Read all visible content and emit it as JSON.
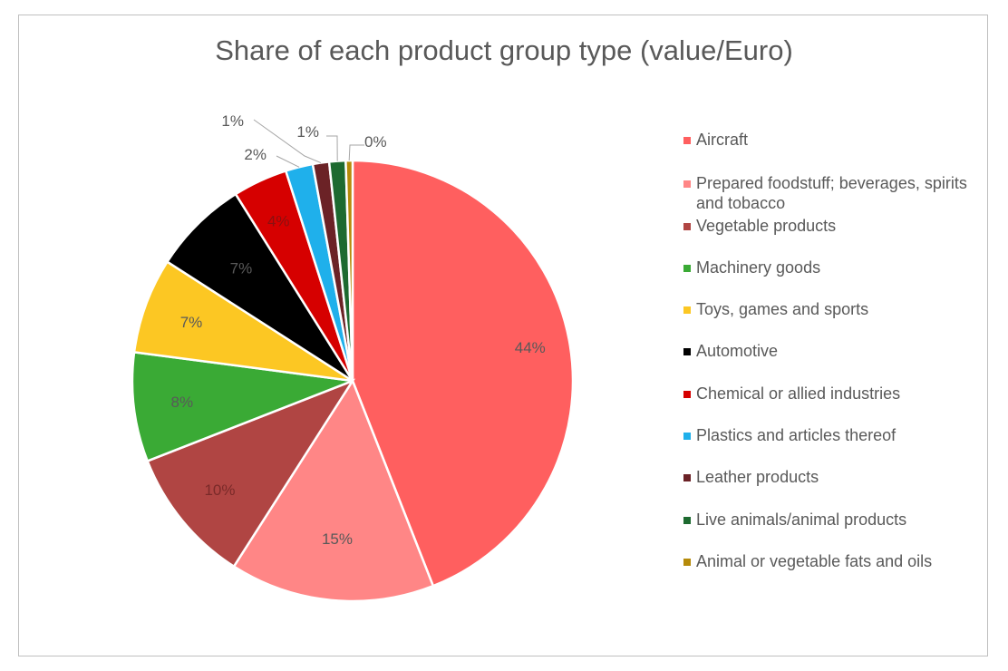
{
  "chart_data": {
    "type": "pie",
    "title": "Share of each product group type (value/Euro)",
    "slices": [
      {
        "label": "Aircraft",
        "value": 44,
        "display": "44%",
        "color": "#ff5f5f"
      },
      {
        "label": "Prepared foodstuff; beverages, spirits and tobacco",
        "value": 15,
        "display": "15%",
        "color": "#ff8686"
      },
      {
        "label": "Vegetable products",
        "value": 10,
        "display": "10%",
        "color": "#b04543"
      },
      {
        "label": "Machinery goods",
        "value": 8,
        "display": "8%",
        "color": "#3aaa35"
      },
      {
        "label": "Toys, games and sports",
        "value": 7,
        "display": "7%",
        "color": "#fcc723"
      },
      {
        "label": "Automotive",
        "value": 7,
        "display": "7%",
        "color": "#000000"
      },
      {
        "label": "Chemical or allied industries",
        "value": 4,
        "display": "4%",
        "color": "#d60000"
      },
      {
        "label": "Plastics and articles thereof",
        "value": 2,
        "display": "2%",
        "color": "#1fb0eb"
      },
      {
        "label": "Leather products",
        "value": 1.2,
        "display": "1%",
        "color": "#6b2226"
      },
      {
        "label": "Live animals/animal products",
        "value": 1.2,
        "display": "1%",
        "color": "#1d6a30"
      },
      {
        "label": "Animal or vegetable fats and oils",
        "value": 0.5,
        "display": "0%",
        "color": "#b58a0a"
      }
    ],
    "legend_position": "right"
  }
}
